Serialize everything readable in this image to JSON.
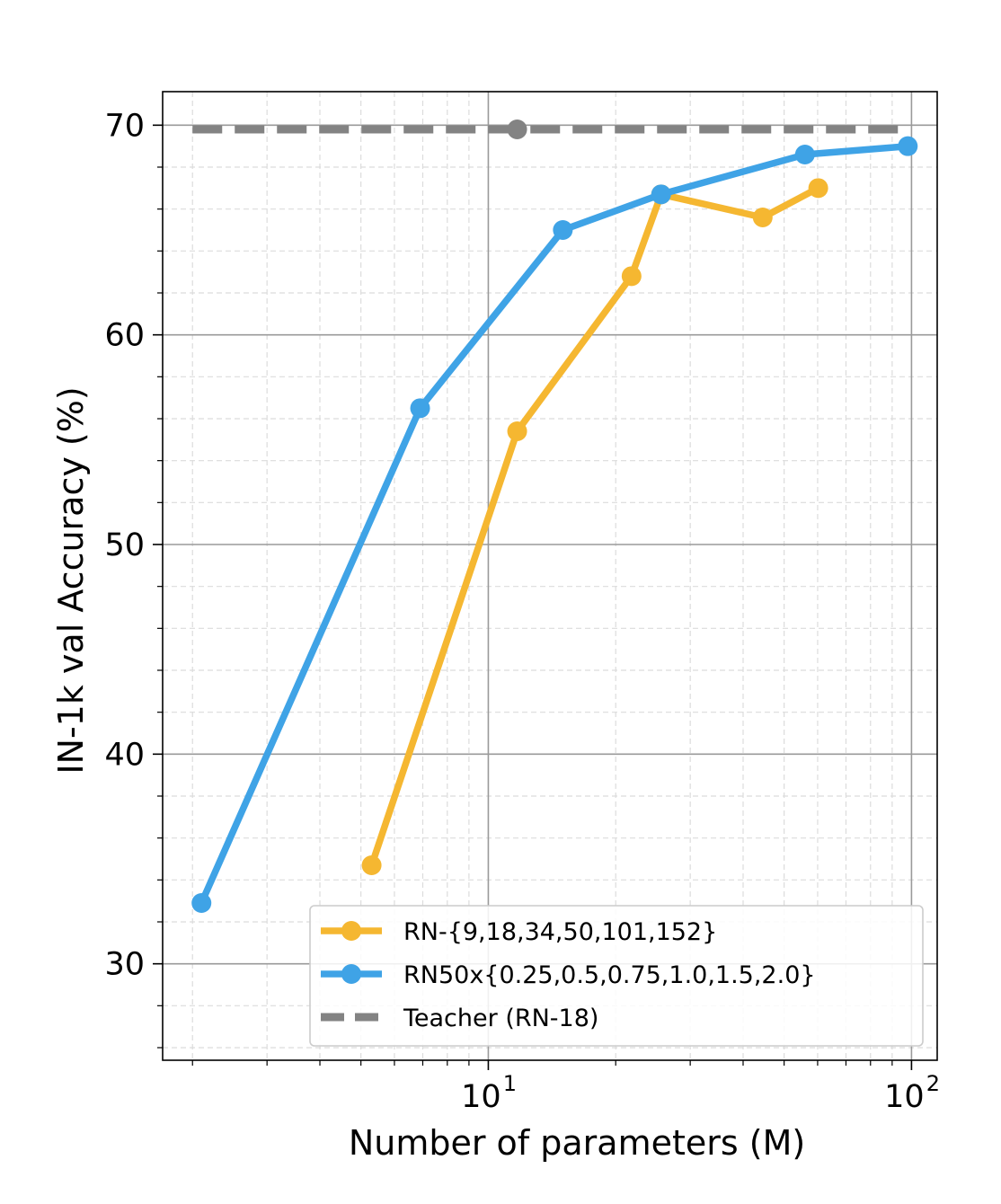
{
  "chart_data": {
    "type": "line",
    "title": "",
    "xlabel": "Number of parameters (M)",
    "ylabel": "IN-1k val Accuracy (%)",
    "xscale": "log",
    "xlim": [
      1.7,
      115
    ],
    "ylim": [
      25.4,
      71.6
    ],
    "x_ticks": [
      {
        "value": 10,
        "base": "10",
        "exp": "1"
      },
      {
        "value": 100,
        "base": "10",
        "exp": "2"
      }
    ],
    "y_ticks": [
      30,
      40,
      50,
      60,
      70
    ],
    "grid": true,
    "legend_position": "lower-right",
    "series": [
      {
        "name": "RN-{9,18,34,50,101,152}",
        "color": "#f5b731",
        "marker": "circle",
        "linestyle": "solid",
        "x": [
          5.3,
          11.7,
          21.8,
          25.6,
          44.5,
          60.2
        ],
        "y": [
          34.7,
          55.4,
          62.8,
          66.7,
          65.6,
          67.0
        ]
      },
      {
        "name": "RN50x{0.25,0.5,0.75,1.0,1.5,2.0}",
        "color": "#3fa3e6",
        "marker": "circle",
        "linestyle": "solid",
        "x": [
          2.1,
          6.9,
          15.0,
          25.6,
          56.0,
          98.0
        ],
        "y": [
          32.9,
          56.5,
          65.0,
          66.7,
          68.6,
          69.0
        ]
      },
      {
        "name": "Teacher (RN-18)",
        "color": "#838383",
        "marker": "circle",
        "linestyle": "dashed",
        "line_x": [
          2.0,
          98.0
        ],
        "line_y": [
          69.8,
          69.8
        ],
        "marker_x": 11.7,
        "marker_y": 69.8
      }
    ]
  }
}
